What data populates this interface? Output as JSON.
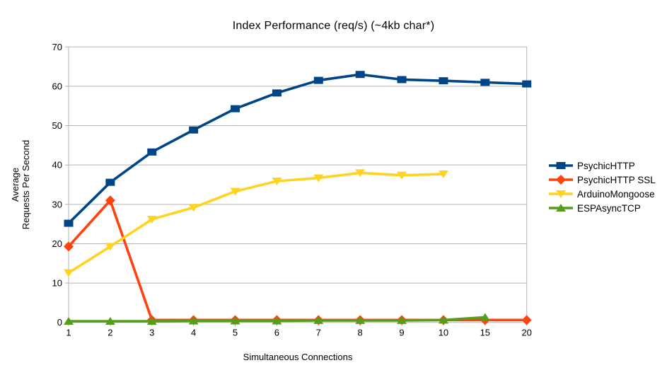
{
  "chart_data": {
    "type": "line",
    "title": "Index Performance (req/s) (~4kb char*)",
    "xlabel": "Simultaneous Connections",
    "ylabel_lines": [
      "Average",
      "Requests Per Second"
    ],
    "categories": [
      "1",
      "2",
      "3",
      "4",
      "5",
      "6",
      "7",
      "8",
      "9",
      "10",
      "15",
      "20"
    ],
    "ylim": [
      0,
      70
    ],
    "ytick_step": 10,
    "grid": "horizontal",
    "legend_position": "right",
    "colors": {
      "background": "#ffffff",
      "grid": "#b3b3b3",
      "axis": "#b3b3b3",
      "text": "#000000"
    },
    "series": [
      {
        "name": "PsychicHTTP",
        "color": "#004586",
        "marker": "square",
        "values": [
          25.2,
          35.6,
          43.3,
          48.9,
          54.3,
          58.3,
          61.5,
          63.0,
          61.7,
          61.4,
          61.0,
          60.6
        ]
      },
      {
        "name": "PsychicHTTP SSL",
        "color": "#ff420e",
        "marker": "diamond",
        "values": [
          19.3,
          31.0,
          0.6,
          0.6,
          0.6,
          0.6,
          0.6,
          0.6,
          0.6,
          0.6,
          0.6,
          0.6
        ]
      },
      {
        "name": "ArduinoMongoose",
        "color": "#ffd320",
        "marker": "triangle-down",
        "values": [
          12.6,
          19.3,
          26.2,
          29.2,
          33.3,
          35.9,
          36.7,
          38.0,
          37.4,
          37.7,
          null,
          null
        ]
      },
      {
        "name": "ESPAsyncTCP",
        "color": "#579d1c",
        "marker": "triangle-up",
        "values": [
          0.3,
          0.3,
          0.3,
          0.4,
          0.4,
          0.4,
          0.5,
          0.5,
          0.5,
          0.6,
          1.3,
          null
        ]
      }
    ]
  }
}
